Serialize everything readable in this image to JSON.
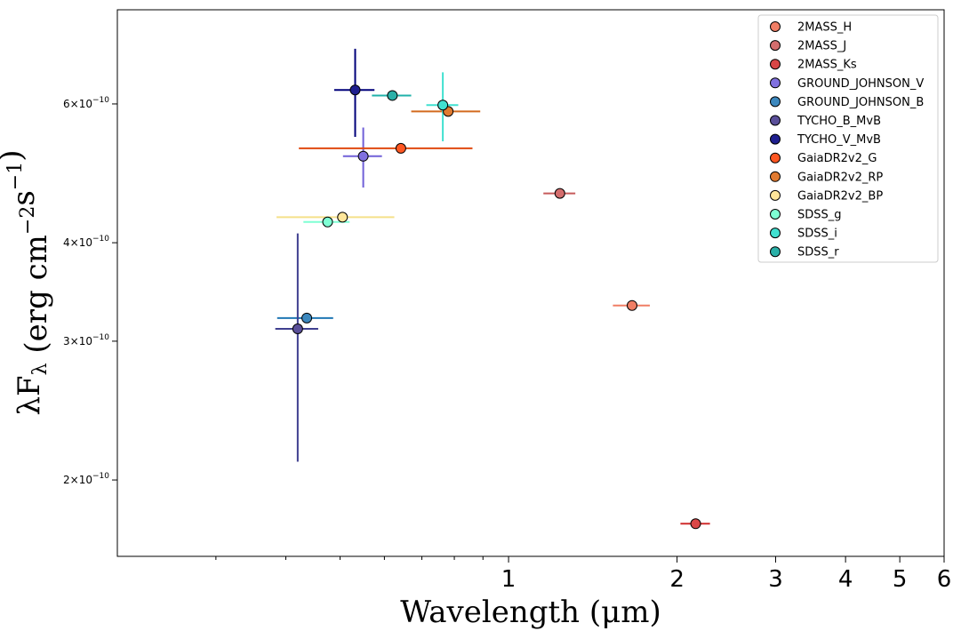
{
  "chart_data": {
    "type": "scatter",
    "xscale": "log",
    "yscale": "log",
    "xlim": [
      0.2,
      6.0
    ],
    "ylim": [
      1.6e-10,
      7.9e-10
    ],
    "xlabel": "Wavelength (μm)",
    "ylabel": "λF_λ (erg cm^−2 s^−1)",
    "xticks": [
      {
        "value": 1,
        "label": "1"
      },
      {
        "value": 2,
        "label": "2"
      },
      {
        "value": 3,
        "label": "3"
      },
      {
        "value": 4,
        "label": "4"
      },
      {
        "value": 5,
        "label": "5"
      },
      {
        "value": 6,
        "label": "6"
      }
    ],
    "xminor_ticks": [
      0.3,
      0.4,
      0.5,
      0.6,
      0.7,
      0.8,
      0.9
    ],
    "yticks": [
      {
        "value": 2e-10,
        "mantissa": "2",
        "exp": "−10"
      },
      {
        "value": 3e-10,
        "mantissa": "3",
        "exp": "−10"
      },
      {
        "value": 4e-10,
        "mantissa": "4",
        "exp": "−10"
      },
      {
        "value": 6e-10,
        "mantissa": "6",
        "exp": "−10"
      }
    ],
    "grid": false,
    "legend_position": "top-right",
    "series": [
      {
        "name": "2MASS_H",
        "x": 1.662,
        "y": 3.33e-10,
        "xerr": 0.126,
        "yerr": 0,
        "color": "#f07e65",
        "errcolor": "#f07e65"
      },
      {
        "name": "2MASS_J",
        "x": 1.235,
        "y": 4.62e-10,
        "xerr": 0.081,
        "yerr": 0,
        "color": "#d46d6d",
        "errcolor": "#c65a5a"
      },
      {
        "name": "2MASS_Ks",
        "x": 2.159,
        "y": 1.76e-10,
        "xerr": 0.131,
        "yerr": 0,
        "color": "#d94646",
        "errcolor": "#cf2b2b"
      },
      {
        "name": "GROUND_JOHNSON_V",
        "x": 0.55,
        "y": 5.15e-10,
        "xerr": 0.044,
        "yerr": 4.5e-11,
        "color": "#8070e0",
        "errcolor": "#7060d8"
      },
      {
        "name": "GROUND_JOHNSON_B",
        "x": 0.436,
        "y": 3.21e-10,
        "xerr": 0.05,
        "yerr": 0,
        "color": "#3c88be",
        "errcolor": "#1f77b4"
      },
      {
        "name": "TYCHO_B_MvB",
        "x": 0.42,
        "y": 3.11e-10,
        "xerr": 0.037,
        "yerr": 1e-10,
        "color": "#5a4f99",
        "errcolor": "#3f3f8f"
      },
      {
        "name": "TYCHO_V_MvB",
        "x": 0.532,
        "y": 6.25e-10,
        "xerr": 0.044,
        "yerr": 8e-11,
        "color": "#1f1f8f",
        "errcolor": "#00007a"
      },
      {
        "name": "GaiaDR2v2_G",
        "x": 0.642,
        "y": 5.27e-10,
        "xerr": 0.22,
        "yerr": 0,
        "color": "#ff5722",
        "errcolor": "#e04a10"
      },
      {
        "name": "GaiaDR2v2_RP",
        "x": 0.78,
        "y": 5.87e-10,
        "xerr": 0.11,
        "yerr": 0,
        "color": "#e07a30",
        "errcolor": "#d36a1e"
      },
      {
        "name": "GaiaDR2v2_BP",
        "x": 0.505,
        "y": 4.31e-10,
        "xerr": 0.12,
        "yerr": 0,
        "color": "#ffe69a",
        "errcolor": "#f5e08a"
      },
      {
        "name": "SDSS_g",
        "x": 0.475,
        "y": 4.25e-10,
        "xerr": 0.045,
        "yerr": 0,
        "color": "#7fffd4",
        "errcolor": "#7fffd4"
      },
      {
        "name": "SDSS_i",
        "x": 0.763,
        "y": 5.98e-10,
        "xerr": 0.05,
        "yerr": 6e-11,
        "color": "#40e0d0",
        "errcolor": "#40e0d0"
      },
      {
        "name": "SDSS_r",
        "x": 0.62,
        "y": 6.15e-10,
        "xerr": 0.05,
        "yerr": 0,
        "color": "#2ab0a8",
        "errcolor": "#20b2aa"
      }
    ]
  }
}
